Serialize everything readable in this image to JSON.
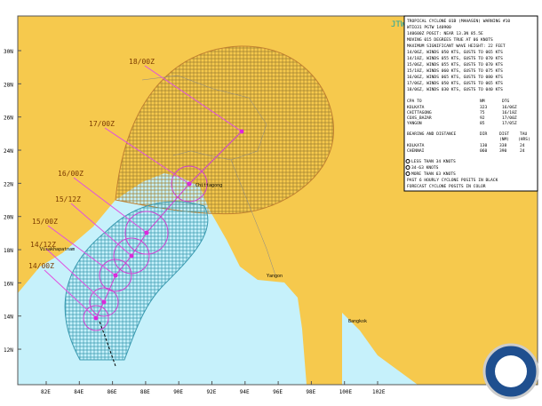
{
  "header": {
    "agency": "JTWC"
  },
  "grid": {
    "lat_labels": [
      "30N",
      "28N",
      "26N",
      "24N",
      "22N",
      "20N",
      "18N",
      "16N",
      "14N",
      "12N"
    ],
    "lon_labels": [
      "82E",
      "84E",
      "86E",
      "88E",
      "90E",
      "92E",
      "94E",
      "96E",
      "98E",
      "100E",
      "102E"
    ]
  },
  "forecast_labels": [
    "18/00Z",
    "17/00Z",
    "16/00Z",
    "15/12Z",
    "15/00Z",
    "14/12Z",
    "14/00Z"
  ],
  "places": [
    "Chittagong",
    "Visakhapatnam",
    "Yangon",
    "Bangkok"
  ],
  "info_box": {
    "lines": [
      "TROPICAL CYCLONE 01B (MAHASEN) WARNING #10",
      "WTIO31 PGTW 140900",
      "140600Z POSIT: NEAR 13.3N 85.5E",
      "MOVING 015 DEGREES TRUE AT 06 KNOTS",
      "MAXIMUM SIGNIFICANT WAVE HEIGHT: 22 FEET",
      "14/06Z, WINDS 050 KTS, GUSTS TO 065 KTS",
      "14/18Z, WINDS 055 KTS, GUSTS TO 070 KTS",
      "15/06Z, WINDS 055 KTS, GUSTS TO 070 KTS",
      "15/18Z, WINDS 060 KTS, GUSTS TO 075 KTS",
      "16/06Z, WINDS 065 KTS, GUSTS TO 080 KTS",
      "17/06Z, WINDS 050 KTS, GUSTS TO 065 KTS",
      "18/06Z, WINDS 030 KTS, GUSTS TO 040 KTS"
    ],
    "cpa_header": [
      "CPA TO",
      "NM",
      "DTG"
    ],
    "cpa_rows": [
      [
        "KOLKATA",
        "323",
        "16/06Z"
      ],
      [
        "CHITTAGONG",
        "75",
        "16/18Z"
      ],
      [
        "COXS_BAZAR",
        "92",
        "17/00Z"
      ],
      [
        "YANGON",
        "85",
        "17/05Z"
      ]
    ],
    "bearing_header": [
      "BEARING AND DISTANCE",
      "DIR",
      "DIST",
      "TAU"
    ],
    "bearing_units": [
      "(NM)",
      "(HRS)"
    ],
    "bearing_rows": [
      [
        "KOLKATA",
        "130",
        "338",
        "24"
      ],
      [
        "CHENNAI",
        "060",
        "390",
        "24"
      ]
    ],
    "legend": [
      "LESS THAN 34 KNOTS",
      "34-63 KNOTS",
      "MORE THAN 63 KNOTS",
      "PAST 6 HOURLY CYCLONE POSITS IN BLACK",
      "FORECAST CYCLONE POSITS IN COLOR"
    ]
  }
}
